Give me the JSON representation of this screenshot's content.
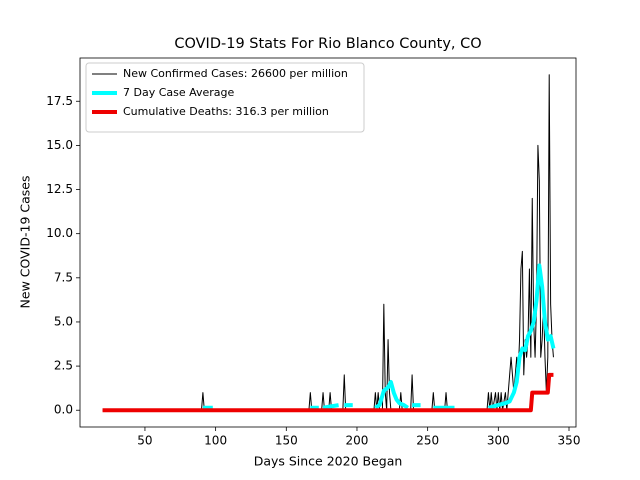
{
  "chart_data": {
    "type": "line",
    "title": "COVID-19 Stats For Rio Blanco County, CO",
    "x_label": "Days Since 2020 Began",
    "y_label": "New COVID-19 Cases",
    "xlim": [
      4.05,
      354.95
    ],
    "ylim": [
      -0.95,
      19.95
    ],
    "xticks": [
      50,
      100,
      150,
      200,
      250,
      300,
      350
    ],
    "yticks": [
      {
        "value": 0,
        "label": "0.0"
      },
      2.5,
      {
        "value": 5,
        "label": "5.0"
      },
      7.5,
      {
        "value": 10,
        "label": "10.0"
      },
      12.5,
      {
        "value": 15,
        "label": "15.0"
      },
      17.5
    ],
    "legend": "upper left",
    "series": [
      {
        "name": "New Confirmed Cases: 26600 per million",
        "color": "#000000",
        "width": 1,
        "x": [
          20,
          90,
          91,
          92,
          166,
          167,
          168,
          175,
          176,
          177,
          180,
          181,
          182,
          190,
          191,
          192,
          212,
          213,
          214,
          215,
          216,
          218,
          219,
          220,
          221,
          222,
          223,
          224,
          230,
          231,
          232,
          238,
          239,
          240,
          253,
          254,
          255,
          262,
          263,
          264,
          292,
          293,
          294,
          295,
          296,
          298,
          299,
          300,
          301,
          302,
          303,
          305,
          306,
          308,
          309,
          310,
          311,
          312,
          313,
          314,
          315,
          316,
          317,
          318,
          319,
          320,
          321,
          322,
          323,
          324,
          325,
          326,
          327,
          328,
          329,
          330,
          331,
          332,
          333,
          334,
          335,
          336,
          337,
          338,
          339
        ],
        "values": [
          0,
          0,
          1,
          0,
          0,
          1,
          0,
          0,
          1,
          0,
          0,
          1,
          0,
          0,
          2,
          0,
          0,
          1,
          0,
          1,
          0,
          0,
          6,
          1,
          0,
          4,
          1,
          0,
          0,
          1,
          0,
          0,
          2,
          0,
          0,
          1,
          0,
          0,
          1,
          0,
          0,
          1,
          0,
          1,
          0,
          1,
          0,
          1,
          0,
          1,
          0,
          1,
          0,
          2,
          3,
          2,
          1,
          2,
          3,
          2,
          4,
          8,
          9,
          2,
          4,
          3,
          4,
          8,
          3,
          12,
          5,
          3,
          6,
          15,
          13,
          3,
          4,
          6,
          3,
          1,
          3,
          19,
          6,
          4,
          3
        ]
      },
      {
        "name": "7 Day Case Average",
        "color": "#00ffff",
        "width": 4,
        "x": [
          91,
          98,
          99,
          167,
          173,
          174,
          176,
          187,
          188,
          191,
          197,
          198,
          213,
          216,
          219,
          222,
          224,
          226,
          228,
          230,
          233,
          236,
          237,
          239,
          245,
          246,
          254,
          269,
          270,
          293,
          300,
          305,
          308,
          311,
          313,
          315,
          317,
          319,
          321,
          323,
          325,
          327,
          329,
          331,
          333,
          335,
          337,
          339
        ],
        "values": [
          0.14,
          0.14,
          null,
          0.14,
          0.14,
          null,
          0.14,
          0.29,
          null,
          0.29,
          0.29,
          null,
          0.14,
          0.3,
          1.1,
          1.3,
          1.6,
          1.0,
          0.6,
          0.4,
          0.3,
          0.14,
          null,
          0.29,
          0.29,
          null,
          0.14,
          0.14,
          null,
          0.14,
          0.3,
          0.4,
          0.5,
          1.0,
          1.6,
          3.0,
          3.5,
          3.4,
          4.2,
          4.5,
          5.0,
          6.2,
          8.2,
          7.0,
          5.0,
          4.0,
          4.2,
          3.5
        ]
      },
      {
        "name": "Cumulative Deaths: 316.3 per million",
        "color": "#ee0000",
        "width": 4,
        "x": [
          20,
          323,
          324,
          335,
          336,
          339
        ],
        "values": [
          0,
          0,
          1,
          1,
          2,
          2
        ]
      }
    ]
  }
}
